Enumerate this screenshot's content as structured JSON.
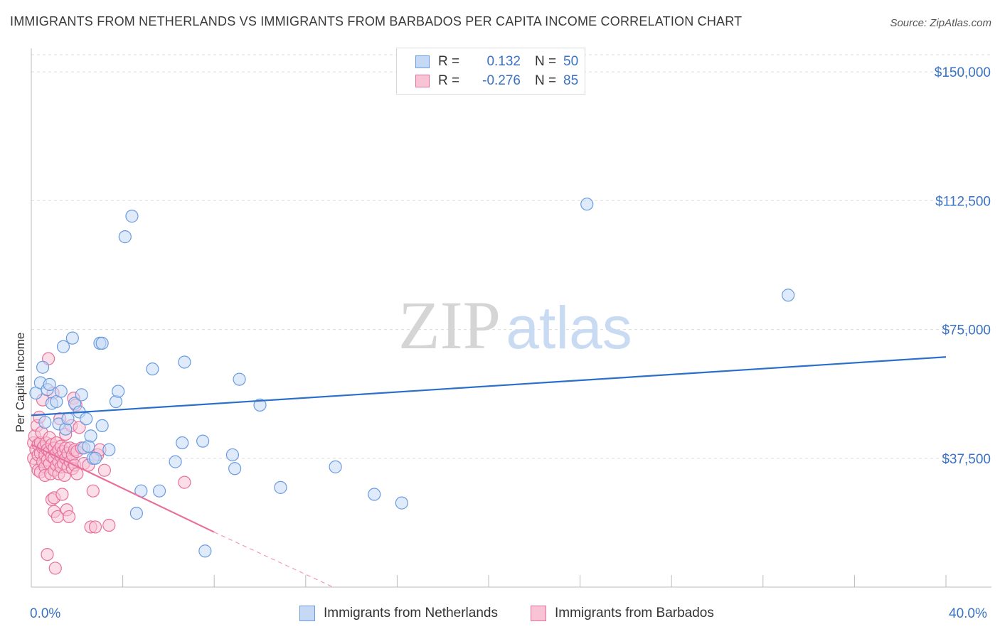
{
  "title": "IMMIGRANTS FROM NETHERLANDS VS IMMIGRANTS FROM BARBADOS PER CAPITA INCOME CORRELATION CHART",
  "source": "Source: ZipAtlas.com",
  "watermark": {
    "zip": "ZIP",
    "atlas": "atlas"
  },
  "legend": {
    "rows": [
      {
        "r_label": "R =",
        "r_value": "0.132",
        "n_label": "N =",
        "n_value": "50"
      },
      {
        "r_label": "R =",
        "r_value": "-0.276",
        "n_label": "N =",
        "n_value": "85"
      }
    ]
  },
  "colors": {
    "netherlands": "#6a9be0",
    "netherlands_fill": "#c5d9f5",
    "barbados": "#e8709a",
    "barbados_fill": "#f7c3d5",
    "axis_text": "#3a72c4"
  },
  "chart_data": {
    "type": "scatter",
    "ylabel": "Per Capita Income",
    "xlim": [
      0,
      40
    ],
    "ylim": [
      0,
      155000
    ],
    "x_tick_labels": [
      "0.0%",
      "40.0%"
    ],
    "y_ticks": [
      37500,
      75000,
      112500,
      150000
    ],
    "y_tick_labels": [
      "$37,500",
      "$75,000",
      "$112,500",
      "$150,000"
    ],
    "grid": true,
    "series": [
      {
        "name": "Immigrants from Netherlands",
        "trend": {
          "x": [
            0,
            40
          ],
          "y": [
            50000,
            67000
          ]
        },
        "points": [
          [
            0.2,
            56500
          ],
          [
            0.4,
            59500
          ],
          [
            0.5,
            64000
          ],
          [
            0.6,
            48000
          ],
          [
            0.7,
            57500
          ],
          [
            0.8,
            59000
          ],
          [
            0.9,
            53500
          ],
          [
            1.1,
            54000
          ],
          [
            1.2,
            47500
          ],
          [
            1.3,
            57000
          ],
          [
            1.4,
            70000
          ],
          [
            1.5,
            46000
          ],
          [
            1.6,
            49000
          ],
          [
            1.8,
            72500
          ],
          [
            1.9,
            53500
          ],
          [
            2.1,
            51000
          ],
          [
            2.2,
            56000
          ],
          [
            2.3,
            40500
          ],
          [
            2.4,
            49000
          ],
          [
            2.5,
            41000
          ],
          [
            2.6,
            44000
          ],
          [
            2.7,
            37500
          ],
          [
            2.8,
            37500
          ],
          [
            3.0,
            71000
          ],
          [
            3.1,
            71000
          ],
          [
            3.1,
            47000
          ],
          [
            3.4,
            40000
          ],
          [
            3.7,
            54000
          ],
          [
            3.8,
            57000
          ],
          [
            4.1,
            102000
          ],
          [
            4.4,
            108000
          ],
          [
            4.6,
            21500
          ],
          [
            4.8,
            28000
          ],
          [
            5.3,
            63500
          ],
          [
            5.6,
            28000
          ],
          [
            6.3,
            36500
          ],
          [
            6.6,
            42000
          ],
          [
            6.7,
            65500
          ],
          [
            7.5,
            42500
          ],
          [
            7.6,
            10500
          ],
          [
            8.8,
            38500
          ],
          [
            8.9,
            34500
          ],
          [
            9.1,
            60500
          ],
          [
            10.0,
            53000
          ],
          [
            10.9,
            29000
          ],
          [
            13.3,
            35000
          ],
          [
            15.0,
            27000
          ],
          [
            16.2,
            24500
          ],
          [
            24.3,
            111500
          ],
          [
            33.1,
            85000
          ]
        ]
      },
      {
        "name": "Immigrants from Barbados",
        "trend": {
          "x": [
            0,
            8
          ],
          "y": [
            41500,
            16000
          ]
        },
        "trend_extension": {
          "x": [
            8,
            13.2
          ],
          "y": [
            16000,
            0
          ]
        },
        "points": [
          [
            0.1,
            42000
          ],
          [
            0.1,
            37500
          ],
          [
            0.15,
            44000
          ],
          [
            0.2,
            40000
          ],
          [
            0.2,
            36000
          ],
          [
            0.25,
            47000
          ],
          [
            0.3,
            41500
          ],
          [
            0.3,
            38500
          ],
          [
            0.3,
            34000
          ],
          [
            0.35,
            49500
          ],
          [
            0.4,
            42000
          ],
          [
            0.4,
            39000
          ],
          [
            0.4,
            33500
          ],
          [
            0.45,
            45000
          ],
          [
            0.5,
            40500
          ],
          [
            0.5,
            36500
          ],
          [
            0.5,
            54500
          ],
          [
            0.55,
            41000
          ],
          [
            0.6,
            38500
          ],
          [
            0.6,
            35000
          ],
          [
            0.6,
            32500
          ],
          [
            0.65,
            42000
          ],
          [
            0.7,
            40000
          ],
          [
            0.7,
            37000
          ],
          [
            0.7,
            9500
          ],
          [
            0.75,
            66500
          ],
          [
            0.8,
            43500
          ],
          [
            0.8,
            39500
          ],
          [
            0.8,
            36000
          ],
          [
            0.85,
            33000
          ],
          [
            0.9,
            41500
          ],
          [
            0.9,
            38000
          ],
          [
            0.9,
            25500
          ],
          [
            0.95,
            56500
          ],
          [
            1.0,
            40500
          ],
          [
            1.0,
            37500
          ],
          [
            1.0,
            34000
          ],
          [
            1.0,
            26000
          ],
          [
            1.0,
            22000
          ],
          [
            1.05,
            5500
          ],
          [
            1.1,
            42000
          ],
          [
            1.1,
            39000
          ],
          [
            1.1,
            35500
          ],
          [
            1.15,
            20500
          ],
          [
            1.2,
            40000
          ],
          [
            1.2,
            36500
          ],
          [
            1.2,
            33000
          ],
          [
            1.25,
            49000
          ],
          [
            1.3,
            41000
          ],
          [
            1.3,
            38000
          ],
          [
            1.3,
            35000
          ],
          [
            1.35,
            27000
          ],
          [
            1.4,
            39500
          ],
          [
            1.4,
            36000
          ],
          [
            1.45,
            32500
          ],
          [
            1.5,
            44500
          ],
          [
            1.5,
            40500
          ],
          [
            1.5,
            37500
          ],
          [
            1.55,
            22500
          ],
          [
            1.6,
            39000
          ],
          [
            1.6,
            35000
          ],
          [
            1.65,
            20500
          ],
          [
            1.7,
            40500
          ],
          [
            1.7,
            36500
          ],
          [
            1.75,
            47000
          ],
          [
            1.8,
            38500
          ],
          [
            1.8,
            34500
          ],
          [
            1.85,
            55000
          ],
          [
            1.9,
            40000
          ],
          [
            1.9,
            35500
          ],
          [
            1.95,
            53000
          ],
          [
            2.0,
            39500
          ],
          [
            2.0,
            33000
          ],
          [
            2.1,
            46500
          ],
          [
            2.2,
            40500
          ],
          [
            2.3,
            36000
          ],
          [
            2.5,
            35500
          ],
          [
            2.6,
            17500
          ],
          [
            2.7,
            28000
          ],
          [
            2.8,
            17500
          ],
          [
            2.9,
            38500
          ],
          [
            3.0,
            40000
          ],
          [
            3.2,
            34000
          ],
          [
            3.4,
            18000
          ],
          [
            6.7,
            30500
          ]
        ]
      }
    ]
  }
}
